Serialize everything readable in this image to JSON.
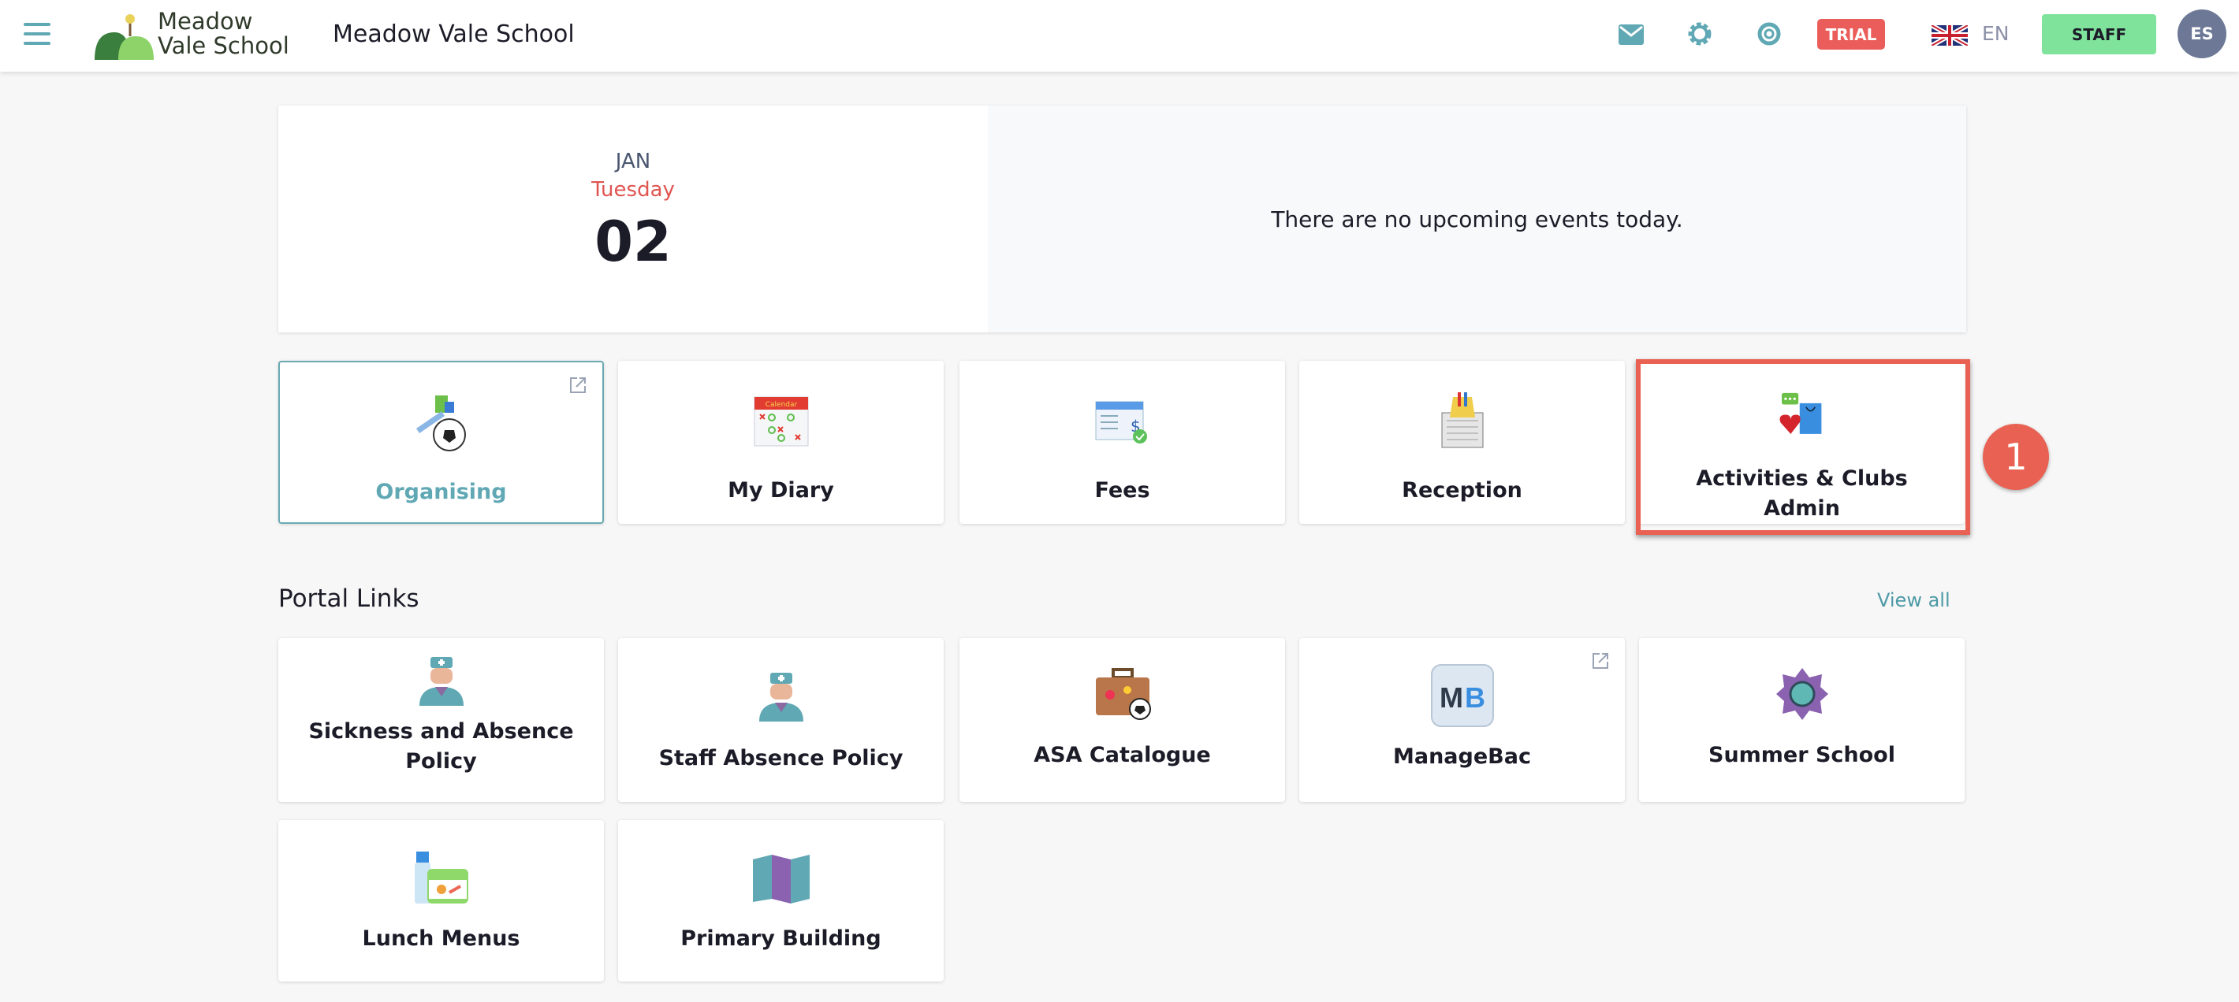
{
  "header": {
    "logo_text_line1": "Meadow",
    "logo_text_line2": "Vale School",
    "title": "Meadow Vale School",
    "trial_badge": "TRIAL",
    "language": "EN",
    "role_button": "STAFF",
    "avatar_initials": "ES",
    "icons": [
      "menu-icon",
      "mail-icon",
      "gear-icon",
      "lifebuoy-icon",
      "uk-flag-icon"
    ]
  },
  "date_card": {
    "month": "JAN",
    "weekday": "Tuesday",
    "day": "02",
    "events_message": "There are no upcoming events today."
  },
  "top_tiles": [
    {
      "label": "Organising",
      "icon": "organising-icon",
      "external": true
    },
    {
      "label": "My Diary",
      "icon": "calendar-icon"
    },
    {
      "label": "Fees",
      "icon": "cheque-icon"
    },
    {
      "label": "Reception",
      "icon": "reception-icon"
    },
    {
      "label": "Activities & Clubs Admin",
      "icon": "activities-icon",
      "highlighted": true
    }
  ],
  "annotation": {
    "step": "1",
    "color": "#e96152"
  },
  "portal_links": {
    "title": "Portal Links",
    "view_all": "View all",
    "items": [
      {
        "label": "Sickness and Absence Policy",
        "icon": "nurse-icon"
      },
      {
        "label": "Staff Absence Policy",
        "icon": "nurse-icon"
      },
      {
        "label": "ASA Catalogue",
        "icon": "suitcase-icon"
      },
      {
        "label": "ManageBac",
        "icon": "managebac-icon",
        "external": true
      },
      {
        "label": "Summer School",
        "icon": "sun-icon"
      },
      {
        "label": "Lunch Menus",
        "icon": "lunchbox-icon"
      },
      {
        "label": "Primary Building",
        "icon": "map-icon"
      }
    ]
  },
  "colors": {
    "accent": "#5fa8b4",
    "trial": "#ea5d5a",
    "staff": "#7fe39c",
    "weekday": "#e05552"
  }
}
